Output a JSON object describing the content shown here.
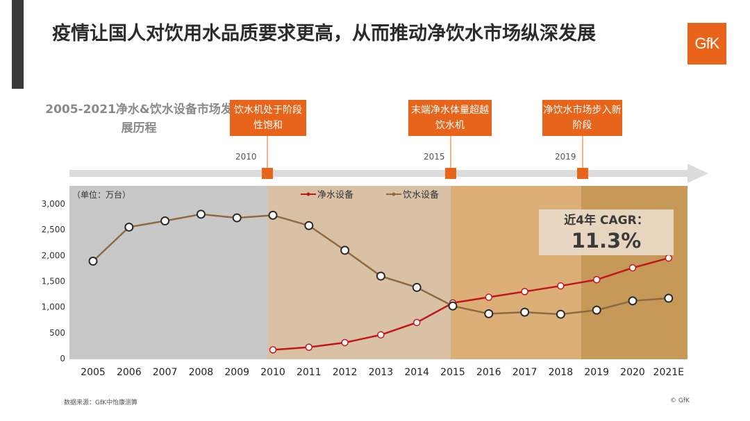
{
  "title": "疫情让国人对饮用水品质要求更高，从而推动净饮水市场纵深发展",
  "logo": "GfK",
  "subtitle": "2005-2021净水&饮水设备市场发展历程",
  "callouts": [
    {
      "text": "饮水机处于阶段性饱和",
      "year": "2010"
    },
    {
      "text": "末端净水体量超越饮水机",
      "year": "2015"
    },
    {
      "text": "净饮水市场步入新阶段",
      "year": "2019"
    }
  ],
  "cagr": {
    "label": "近4年 CAGR：",
    "value": "11.3%"
  },
  "source": "数据来源：GfK中怡康测算",
  "copyright": "© GfK",
  "colors": {
    "accent": "#e8641b",
    "purifier": "#c0161c",
    "dispenser": "#8d6a3f"
  },
  "chart_data": {
    "type": "line",
    "unit_label": "（单位：万台）",
    "categories": [
      "2005",
      "2006",
      "2007",
      "2008",
      "2009",
      "2010",
      "2011",
      "2012",
      "2013",
      "2014",
      "2015",
      "2016",
      "2017",
      "2018",
      "2019",
      "2020",
      "2021E"
    ],
    "ylim": [
      0,
      3000
    ],
    "yticks": [
      0,
      500,
      1000,
      1500,
      2000,
      2500,
      3000
    ],
    "ytick_labels": [
      "0",
      "500",
      "1,000",
      "1,500",
      "2,000",
      "2,500",
      "3,000"
    ],
    "legend_position": "top-center",
    "series": [
      {
        "name": "净水设备",
        "color": "#c0161c",
        "values": [
          null,
          null,
          null,
          null,
          null,
          170,
          220,
          310,
          460,
          700,
          1080,
          1190,
          1300,
          1410,
          1530,
          1760,
          1950
        ]
      },
      {
        "name": "饮水设备",
        "color": "#8d6a3f",
        "values": [
          1890,
          2550,
          2670,
          2800,
          2730,
          2780,
          2580,
          2100,
          1600,
          1380,
          1020,
          870,
          900,
          860,
          940,
          1120,
          1170
        ]
      }
    ]
  }
}
